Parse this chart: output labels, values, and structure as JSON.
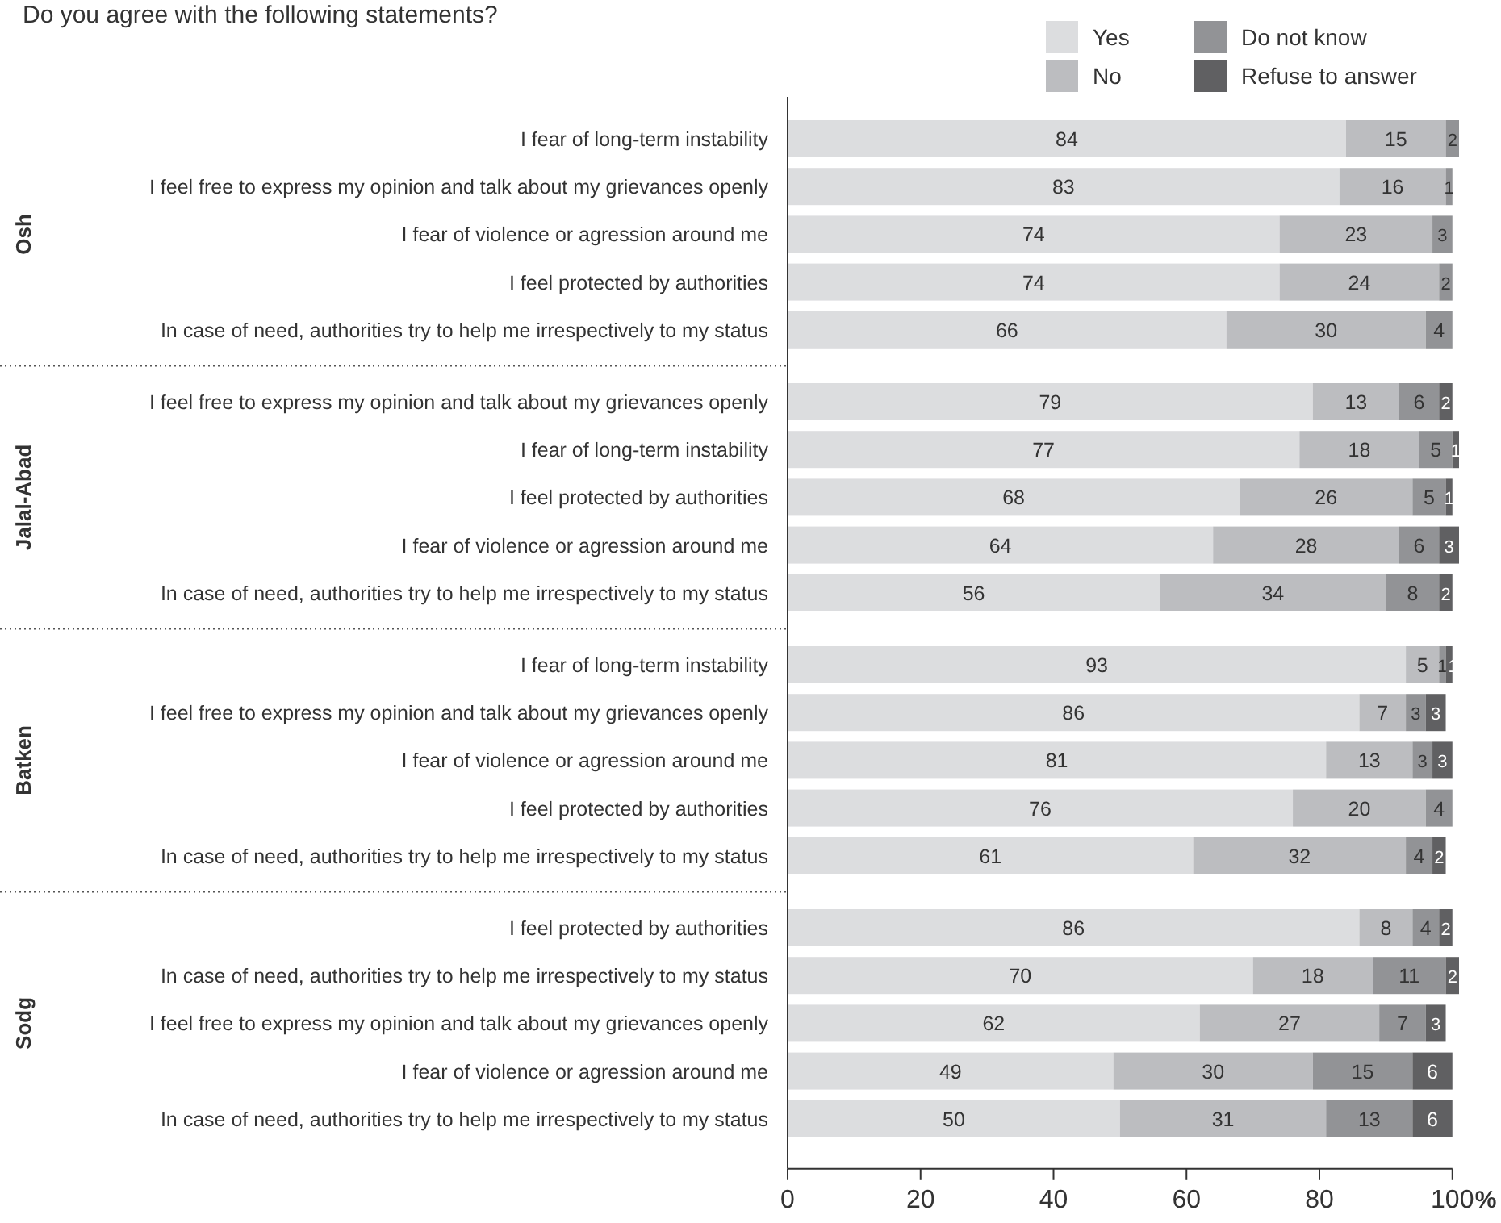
{
  "chart_data": {
    "type": "bar",
    "orientation": "horizontal",
    "stacked": true,
    "title": "Do you agree with the following statements?",
    "xlabel": "%",
    "categories": [
      "I fear of long-term instability",
      "I feel free to express my opinion and talk about my grievances openly",
      "I fear of violence or agression around me",
      "I feel protected by authorities",
      "In case of need, authorities try to help me irrespectively to my status",
      "I feel free to express my opinion and talk about my grievances openly",
      "I fear of long-term instability",
      "I feel protected by authorities",
      "I fear of violence or agression around me",
      "In case of need, authorities try to help me irrespectively to my status",
      "I fear of long-term instability",
      "I feel free to express my opinion and talk about my grievances openly",
      "I fear of violence or agression around me",
      "I feel protected by authorities",
      "In case of need, authorities try to help me irrespectively to my status",
      "I feel protected by authorities",
      "In case of need, authorities try to help me irrespectively to my status",
      "I feel free to express my opinion and talk about my grievances openly",
      "I fear of violence or agression around me",
      "In case of need, authorities try to help me irrespectively to my status"
    ],
    "series": [
      {
        "name": "Yes",
        "color": "#dcdddf",
        "values": [
          84,
          83,
          74,
          74,
          66,
          79,
          77,
          68,
          64,
          56,
          93,
          86,
          81,
          76,
          61,
          86,
          70,
          62,
          49,
          50
        ]
      },
      {
        "name": "No",
        "color": "#bcbdc0",
        "values": [
          15,
          16,
          23,
          24,
          30,
          13,
          18,
          26,
          28,
          34,
          5,
          7,
          13,
          20,
          32,
          8,
          18,
          27,
          30,
          31
        ]
      },
      {
        "name": "Do not know",
        "color": "#929396",
        "values": [
          2,
          1,
          3,
          2,
          4,
          6,
          5,
          5,
          6,
          8,
          1,
          3,
          3,
          4,
          4,
          4,
          11,
          7,
          15,
          13
        ]
      },
      {
        "name": "Refuse to answer",
        "color": "#606062",
        "values": [
          null,
          null,
          null,
          null,
          null,
          2,
          1,
          1,
          3,
          2,
          1,
          3,
          3,
          null,
          2,
          2,
          2,
          3,
          6,
          6
        ]
      }
    ],
    "xlim": [
      0,
      101
    ],
    "xticks": [
      0,
      20,
      40,
      60,
      80,
      100
    ],
    "data_labels": true,
    "legend": "top right",
    "grid": false,
    "annotations": [
      "Osh",
      "Jalal-Abad",
      "Batken",
      "Sodg"
    ]
  }
}
